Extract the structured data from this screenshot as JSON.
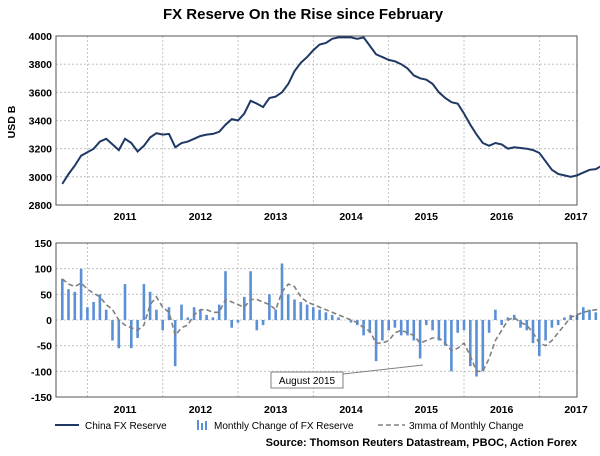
{
  "title": "FX Reserve On the Rise since February",
  "source": "Source: Thomson Reuters Datastream, PBOC, Action Forex",
  "colors": {
    "navy": "#1f3864",
    "bar": "#5b8fd6",
    "mma": "#808080",
    "grid": "#b8b8b8"
  },
  "chart_data": [
    {
      "type": "line",
      "ylabel": "USD B",
      "ylim": [
        2800,
        4000
      ],
      "yticks": [
        2800,
        3000,
        3200,
        3400,
        3600,
        3800,
        4000
      ],
      "year_labels": [
        "2011",
        "2012",
        "2013",
        "2014",
        "2015",
        "2016",
        "2017"
      ],
      "grid": true,
      "series": [
        {
          "name": "China FX Reserve",
          "x_start": "2010-09",
          "values": [
            2950,
            3020,
            3080,
            3150,
            3175,
            3200,
            3250,
            3270,
            3230,
            3190,
            3270,
            3240,
            3180,
            3220,
            3280,
            3310,
            3300,
            3305,
            3210,
            3240,
            3250,
            3270,
            3290,
            3300,
            3305,
            3320,
            3370,
            3410,
            3400,
            3450,
            3540,
            3520,
            3495,
            3560,
            3570,
            3600,
            3660,
            3750,
            3810,
            3850,
            3900,
            3940,
            3950,
            3980,
            3990,
            3990,
            3990,
            3980,
            3990,
            3930,
            3870,
            3850,
            3830,
            3820,
            3800,
            3770,
            3720,
            3700,
            3690,
            3660,
            3600,
            3560,
            3530,
            3520,
            3450,
            3370,
            3300,
            3240,
            3220,
            3240,
            3230,
            3200,
            3210,
            3205,
            3200,
            3190,
            3170,
            3110,
            3050,
            3020,
            3010,
            3000,
            3010,
            3030,
            3050,
            3055,
            3080,
            3090
          ]
        }
      ]
    },
    {
      "type": "bar",
      "ylim": [
        -150,
        150
      ],
      "yticks": [
        -150,
        -100,
        -50,
        0,
        50,
        100,
        150
      ],
      "year_labels": [
        "2011",
        "2012",
        "2013",
        "2014",
        "2015",
        "2016",
        "2017"
      ],
      "grid": true,
      "series": [
        {
          "name": "Monthly Change of FX Reserve",
          "x_start": "2010-09",
          "values": [
            80,
            60,
            55,
            100,
            25,
            35,
            50,
            20,
            -40,
            -55,
            70,
            -55,
            -35,
            70,
            55,
            20,
            -20,
            25,
            -90,
            30,
            5,
            25,
            20,
            10,
            5,
            30,
            95,
            -15,
            -5,
            45,
            95,
            -20,
            -10,
            50,
            20,
            110,
            50,
            40,
            35,
            30,
            25,
            20,
            15,
            10,
            5,
            0,
            -5,
            -10,
            -30,
            -25,
            -80,
            -40,
            -20,
            -15,
            -30,
            -30,
            -40,
            -75,
            -10,
            -20,
            -40,
            -50,
            -100,
            -25,
            -20,
            -90,
            -110,
            -100,
            -25,
            20,
            -10,
            5,
            10,
            -15,
            -20,
            -45,
            -70,
            -40,
            -15,
            -10,
            5,
            10,
            10,
            25,
            20,
            15,
            25,
            15
          ]
        },
        {
          "name": "3mma of Monthly Change",
          "x_start": "2010-09",
          "values": [
            80,
            70,
            65,
            72,
            60,
            52,
            45,
            30,
            20,
            0,
            -10,
            -15,
            -20,
            -10,
            30,
            45,
            25,
            15,
            -30,
            -15,
            -10,
            10,
            20,
            20,
            15,
            15,
            40,
            35,
            30,
            25,
            40,
            40,
            35,
            30,
            20,
            55,
            70,
            65,
            45,
            35,
            30,
            25,
            20,
            15,
            10,
            5,
            0,
            -5,
            -15,
            -22,
            -45,
            -45,
            -40,
            -25,
            -20,
            -25,
            -30,
            -45,
            -40,
            -35,
            -35,
            -45,
            -60,
            -55,
            -45,
            -70,
            -100,
            -100,
            -75,
            -40,
            -20,
            0,
            5,
            -5,
            -10,
            -25,
            -45,
            -50,
            -40,
            -25,
            -10,
            5,
            10,
            15,
            18,
            20,
            20,
            18
          ]
        }
      ],
      "annotation": "August 2015"
    }
  ]
}
